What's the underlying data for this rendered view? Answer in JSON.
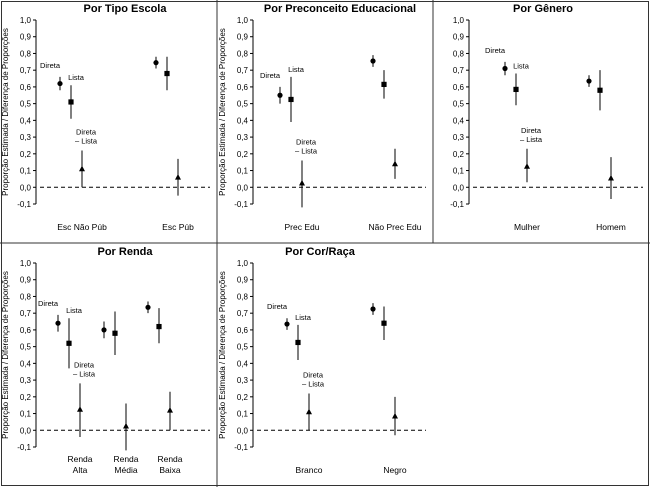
{
  "chart_data": [
    {
      "type": "scatter",
      "title": "Por Tipo Escola",
      "ylabel": "Proporção Estimada / Diferença de Proporções",
      "ylim": [
        -0.1,
        1.0
      ],
      "yticks": [
        "-0,1",
        "0,0",
        "0,1",
        "0,2",
        "0,3",
        "0,4",
        "0,5",
        "0,6",
        "0,7",
        "0,8",
        "0,9",
        "1,0"
      ],
      "reference_line": 0,
      "categories": [
        "Esc Não Púb",
        "Esc Púb"
      ],
      "series": [
        {
          "name": "Direta",
          "marker": "circle",
          "values": [
            0.62,
            0.745
          ],
          "ci": [
            [
              0.58,
              0.66
            ],
            [
              0.71,
              0.78
            ]
          ]
        },
        {
          "name": "Lista",
          "marker": "square",
          "values": [
            0.51,
            0.68
          ],
          "ci": [
            [
              0.41,
              0.61
            ],
            [
              0.58,
              0.78
            ]
          ]
        },
        {
          "name": "Direta – Lista",
          "marker": "triangle",
          "values": [
            0.11,
            0.06
          ],
          "ci": [
            [
              0.0,
              0.22
            ],
            [
              -0.05,
              0.17
            ]
          ]
        }
      ],
      "annotations": {
        "direta": "Direta",
        "lista": "Lista",
        "diff_1": "Direta",
        "diff_2": "– Lista"
      }
    },
    {
      "type": "scatter",
      "title": "Por Preconceito Educacional",
      "ylabel": "Proporção Estimada / Diferença de Proporções",
      "ylim": [
        -0.1,
        1.0
      ],
      "yticks": [
        "-0,1",
        "0,0",
        "0,1",
        "0,2",
        "0,3",
        "0,4",
        "0,5",
        "0,6",
        "0,7",
        "0,8",
        "0,9",
        "1,0"
      ],
      "reference_line": 0,
      "categories": [
        "Prec Edu",
        "Não Prec Edu"
      ],
      "series": [
        {
          "name": "Direta",
          "marker": "circle",
          "values": [
            0.55,
            0.755
          ],
          "ci": [
            [
              0.5,
              0.6
            ],
            [
              0.72,
              0.79
            ]
          ]
        },
        {
          "name": "Lista",
          "marker": "square",
          "values": [
            0.525,
            0.615
          ],
          "ci": [
            [
              0.39,
              0.66
            ],
            [
              0.53,
              0.7
            ]
          ]
        },
        {
          "name": "Direta – Lista",
          "marker": "triangle",
          "values": [
            0.025,
            0.14
          ],
          "ci": [
            [
              -0.12,
              0.16
            ],
            [
              0.05,
              0.23
            ]
          ]
        }
      ],
      "annotations": {
        "direta": "Direta",
        "lista": "Lista",
        "diff_1": "Direta",
        "diff_2": "– Lista"
      }
    },
    {
      "type": "scatter",
      "title": "Por Gênero",
      "ylabel": "",
      "ylim": [
        -0.1,
        1.0
      ],
      "yticks": [
        "-0,1",
        "0,0",
        "0,1",
        "0,2",
        "0,3",
        "0,4",
        "0,5",
        "0,6",
        "0,7",
        "0,8",
        "0,9",
        "1,0"
      ],
      "reference_line": 0,
      "categories": [
        "Mulher",
        "Homem"
      ],
      "series": [
        {
          "name": "Direta",
          "marker": "circle",
          "values": [
            0.71,
            0.635
          ],
          "ci": [
            [
              0.67,
              0.75
            ],
            [
              0.6,
              0.67
            ]
          ]
        },
        {
          "name": "Lista",
          "marker": "square",
          "values": [
            0.585,
            0.58
          ],
          "ci": [
            [
              0.49,
              0.68
            ],
            [
              0.46,
              0.7
            ]
          ]
        },
        {
          "name": "Direta – Lista",
          "marker": "triangle",
          "values": [
            0.125,
            0.055
          ],
          "ci": [
            [
              0.03,
              0.23
            ],
            [
              -0.07,
              0.18
            ]
          ]
        }
      ],
      "annotations": {
        "direta": "Direta",
        "lista": "Lista",
        "diff_1": "Direta",
        "diff_2": "– Lista"
      }
    },
    {
      "type": "scatter",
      "title": "Por Renda",
      "ylabel": "Proporção Estimada / Diferença de Proporções",
      "ylim": [
        -0.1,
        1.0
      ],
      "yticks": [
        "-0,1",
        "0,0",
        "0,1",
        "0,2",
        "0,3",
        "0,4",
        "0,5",
        "0,6",
        "0,7",
        "0,8",
        "0,9",
        "1,0"
      ],
      "reference_line": 0,
      "categories": [
        "Renda Alta",
        "Renda Média",
        "Renda Baixa"
      ],
      "category_lines": [
        [
          "Renda",
          "Alta"
        ],
        [
          "Renda",
          "Média"
        ],
        [
          "Renda",
          "Baixa"
        ]
      ],
      "series": [
        {
          "name": "Direta",
          "marker": "circle",
          "values": [
            0.64,
            0.6,
            0.735
          ],
          "ci": [
            [
              0.59,
              0.69
            ],
            [
              0.55,
              0.65
            ],
            [
              0.7,
              0.77
            ]
          ]
        },
        {
          "name": "Lista",
          "marker": "square",
          "values": [
            0.52,
            0.58,
            0.62
          ],
          "ci": [
            [
              0.37,
              0.67
            ],
            [
              0.45,
              0.71
            ],
            [
              0.52,
              0.73
            ]
          ]
        },
        {
          "name": "Direta – Lista",
          "marker": "triangle",
          "values": [
            0.125,
            0.025,
            0.12
          ],
          "ci": [
            [
              -0.04,
              0.28
            ],
            [
              -0.12,
              0.16
            ],
            [
              0.0,
              0.23
            ]
          ]
        }
      ],
      "annotations": {
        "direta": "Direta",
        "lista": "Lista",
        "diff_1": "Direta",
        "diff_2": "– Lista"
      }
    },
    {
      "type": "scatter",
      "title": "Por Cor/Raça",
      "ylabel": "Proporção Estimada / Diferença de Proporções",
      "ylim": [
        -0.1,
        1.0
      ],
      "yticks": [
        "-0,1",
        "0,0",
        "0,1",
        "0,2",
        "0,3",
        "0,4",
        "0,5",
        "0,6",
        "0,7",
        "0,8",
        "0,9",
        "1,0"
      ],
      "reference_line": 0,
      "categories": [
        "Branco",
        "Negro"
      ],
      "series": [
        {
          "name": "Direta",
          "marker": "circle",
          "values": [
            0.635,
            0.725
          ],
          "ci": [
            [
              0.6,
              0.67
            ],
            [
              0.69,
              0.76
            ]
          ]
        },
        {
          "name": "Lista",
          "marker": "square",
          "values": [
            0.525,
            0.64
          ],
          "ci": [
            [
              0.42,
              0.63
            ],
            [
              0.54,
              0.74
            ]
          ]
        },
        {
          "name": "Direta – Lista",
          "marker": "triangle",
          "values": [
            0.11,
            0.085
          ],
          "ci": [
            [
              0.0,
              0.22
            ],
            [
              -0.03,
              0.2
            ]
          ]
        }
      ],
      "annotations": {
        "direta": "Direta",
        "lista": "Lista",
        "diff_1": "Direta",
        "diff_2": "– Lista"
      }
    }
  ]
}
